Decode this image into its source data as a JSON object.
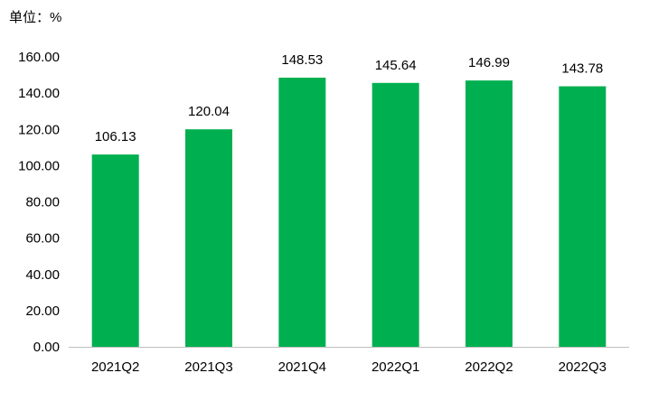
{
  "unit_label": "单位：%",
  "chart_data": {
    "type": "bar",
    "categories": [
      "2021Q2",
      "2021Q3",
      "2021Q4",
      "2022Q1",
      "2022Q2",
      "2022Q3"
    ],
    "values": [
      106.13,
      120.04,
      148.53,
      145.64,
      146.99,
      143.78
    ],
    "data_labels": [
      "106.13",
      "120.04",
      "148.53",
      "145.64",
      "146.99",
      "143.78"
    ],
    "y_ticks": [
      "0.00",
      "20.00",
      "40.00",
      "60.00",
      "80.00",
      "100.00",
      "120.00",
      "140.00",
      "160.00"
    ],
    "ylim": [
      0,
      160
    ],
    "grid": false,
    "bar_color": "#00b050",
    "axis_color": "#bfbfbf"
  }
}
